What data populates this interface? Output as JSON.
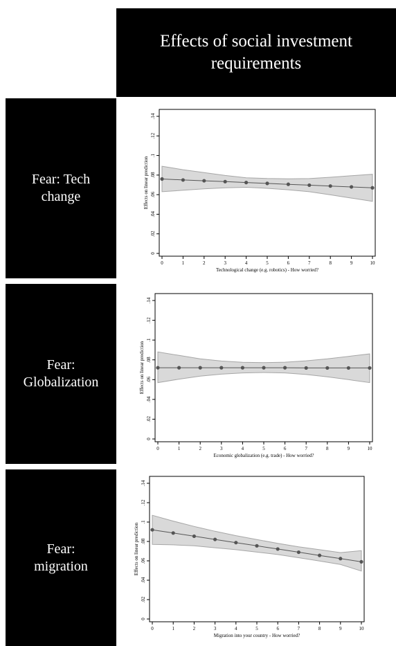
{
  "header": {
    "title": "Effects of social investment\nrequirements"
  },
  "rows": [
    {
      "label": "Fear: Tech\nchange"
    },
    {
      "label": "Fear:\nGlobalization"
    },
    {
      "label": "Fear:\nmigration"
    }
  ],
  "chart_data": [
    {
      "type": "line",
      "xlabel": "Technological change (e.g. robotics)  - How worried?",
      "ylabel": "Effects on linear prediction",
      "xlim": [
        0,
        10
      ],
      "ylim": [
        0,
        0.14
      ],
      "x_ticks": [
        "0",
        "1",
        "2",
        "3",
        "4",
        "5",
        "6",
        "7",
        "8",
        "9",
        "10"
      ],
      "y_ticks": [
        "0",
        ".02",
        ".04",
        ".06",
        ".08",
        ".1",
        ".12",
        ".14"
      ],
      "x": [
        0,
        1,
        2,
        3,
        4,
        5,
        6,
        7,
        8,
        9,
        10
      ],
      "y": [
        0.076,
        0.075,
        0.0742,
        0.0733,
        0.0724,
        0.0715,
        0.0706,
        0.0697,
        0.0688,
        0.0679,
        0.067
      ],
      "ci_low": [
        0.063,
        0.0645,
        0.066,
        0.067,
        0.0675,
        0.0665,
        0.065,
        0.063,
        0.0598,
        0.0565,
        0.0532
      ],
      "ci_high": [
        0.089,
        0.0855,
        0.0825,
        0.0796,
        0.0773,
        0.0765,
        0.0762,
        0.0764,
        0.0778,
        0.0793,
        0.0808
      ],
      "grid": false,
      "colors": {
        "line": "#555555",
        "band": "#d9d9d9",
        "band_edge": "#a6a6a6"
      }
    },
    {
      "type": "line",
      "xlabel": "Economic globalization (e.g. trade) - How worried?",
      "ylabel": "Effects on linear prediction",
      "xlim": [
        0,
        10
      ],
      "ylim": [
        0,
        0.14
      ],
      "x_ticks": [
        "0",
        "1",
        "2",
        "3",
        "4",
        "5",
        "6",
        "7",
        "8",
        "9",
        "10"
      ],
      "y_ticks": [
        "0",
        ".02",
        ".04",
        ".06",
        ".08",
        ".1",
        ".12",
        ".14"
      ],
      "x": [
        0,
        1,
        2,
        3,
        4,
        5,
        6,
        7,
        8,
        9,
        10
      ],
      "y": [
        0.072,
        0.072,
        0.072,
        0.072,
        0.072,
        0.072,
        0.072,
        0.0718,
        0.0718,
        0.0718,
        0.0718
      ],
      "ci_low": [
        0.057,
        0.0605,
        0.0635,
        0.0655,
        0.0668,
        0.0672,
        0.0668,
        0.0652,
        0.0628,
        0.06,
        0.057
      ],
      "ci_high": [
        0.088,
        0.0845,
        0.081,
        0.0788,
        0.0775,
        0.0772,
        0.0776,
        0.079,
        0.081,
        0.0835,
        0.086
      ],
      "grid": false,
      "colors": {
        "line": "#555555",
        "band": "#d9d9d9",
        "band_edge": "#a6a6a6"
      }
    },
    {
      "type": "line",
      "xlabel": "Migration into your country - How worried?",
      "ylabel": "Effects on linear prediction",
      "xlim": [
        0,
        10
      ],
      "ylim": [
        0,
        0.14
      ],
      "x_ticks": [
        "0",
        "1",
        "2",
        "3",
        "4",
        "5",
        "6",
        "7",
        "8",
        "9",
        "10"
      ],
      "y_ticks": [
        "0",
        ".02",
        ".04",
        ".06",
        ".08",
        ".1",
        ".12",
        ".14"
      ],
      "x": [
        0,
        1,
        2,
        3,
        4,
        5,
        6,
        7,
        8,
        9,
        10
      ],
      "y": [
        0.092,
        0.0887,
        0.0854,
        0.0821,
        0.0788,
        0.0755,
        0.0722,
        0.0689,
        0.0656,
        0.0623,
        0.059
      ],
      "ci_low": [
        0.077,
        0.0765,
        0.0755,
        0.0735,
        0.0715,
        0.069,
        0.0665,
        0.0632,
        0.0598,
        0.0562,
        0.0495
      ],
      "ci_high": [
        0.107,
        0.101,
        0.0955,
        0.0905,
        0.086,
        0.082,
        0.078,
        0.0745,
        0.0715,
        0.0685,
        0.0705
      ],
      "grid": false,
      "colors": {
        "line": "#555555",
        "band": "#d9d9d9",
        "band_edge": "#a6a6a6"
      }
    }
  ]
}
